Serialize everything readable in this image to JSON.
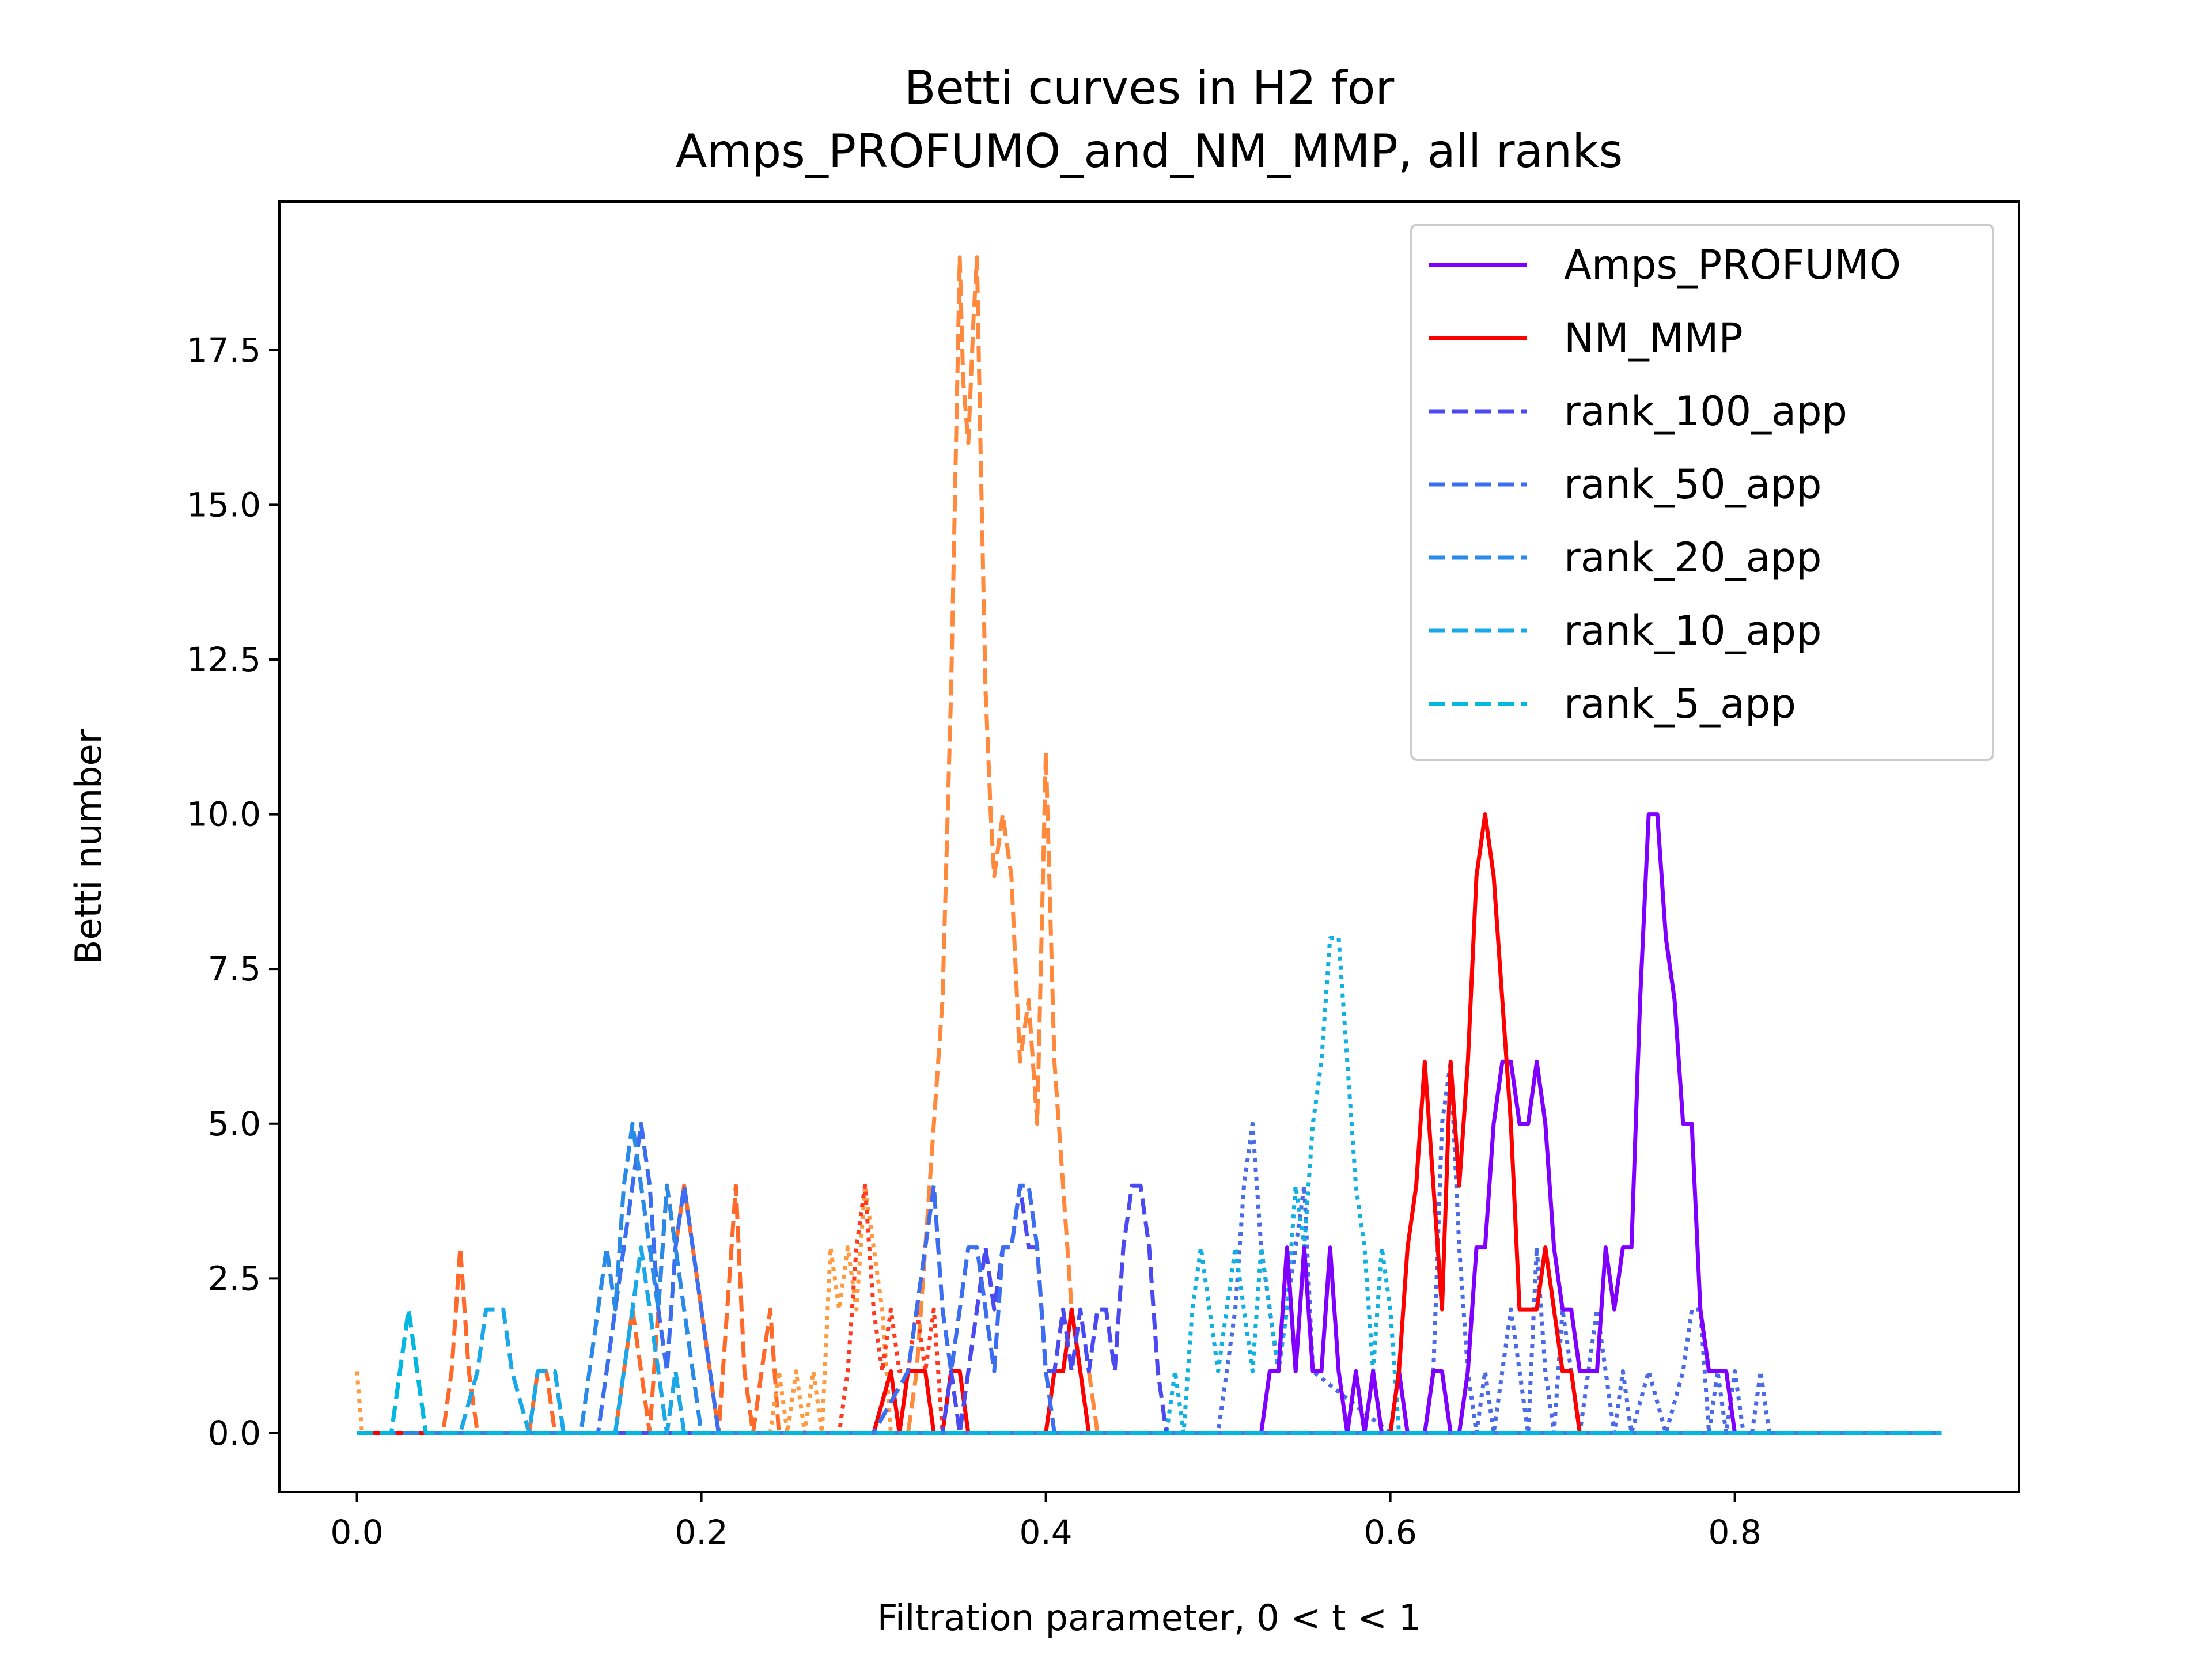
{
  "chart_data": {
    "type": "line",
    "title_line1": "Betti curves in H2 for",
    "title_line2": "Amps_PROFUMO_and_NM_MMP, all ranks",
    "xlabel": "Filtration parameter, 0 < t < 1",
    "ylabel": "Betti number",
    "xlim": [
      -0.045,
      0.965
    ],
    "ylim": [
      -0.95,
      19.9
    ],
    "xticks": [
      0.0,
      0.2,
      0.4,
      0.6,
      0.8
    ],
    "xtick_labels": [
      "0.0",
      "0.2",
      "0.4",
      "0.6",
      "0.8"
    ],
    "yticks": [
      0.0,
      2.5,
      5.0,
      7.5,
      10.0,
      12.5,
      15.0,
      17.5
    ],
    "ytick_labels": [
      "0.0",
      "2.5",
      "5.0",
      "7.5",
      "10.0",
      "12.5",
      "15.0",
      "17.5"
    ],
    "grid": false,
    "legend_position": "top-right",
    "series": [
      {
        "name": "Amps_PROFUMO",
        "color": "#8000ff",
        "style": "solid",
        "x": [
          0.0,
          0.2,
          0.4,
          0.525,
          0.53,
          0.535,
          0.54,
          0.545,
          0.55,
          0.555,
          0.56,
          0.565,
          0.57,
          0.575,
          0.58,
          0.585,
          0.59,
          0.595,
          0.6,
          0.605,
          0.61,
          0.615,
          0.62,
          0.625,
          0.63,
          0.635,
          0.64,
          0.645,
          0.65,
          0.655,
          0.66,
          0.665,
          0.67,
          0.675,
          0.68,
          0.685,
          0.69,
          0.695,
          0.7,
          0.705,
          0.71,
          0.715,
          0.72,
          0.725,
          0.73,
          0.735,
          0.74,
          0.745,
          0.75,
          0.755,
          0.76,
          0.765,
          0.77,
          0.775,
          0.78,
          0.785,
          0.79,
          0.795,
          0.8,
          0.805
        ],
        "y": [
          0,
          0,
          0,
          0,
          1,
          1,
          3,
          1,
          3,
          1,
          1,
          3,
          1,
          0,
          1,
          0,
          1,
          0,
          0,
          1,
          0,
          0,
          0,
          1,
          1,
          0,
          0,
          1,
          3,
          3,
          5,
          6,
          6,
          5,
          5,
          6,
          5,
          3,
          2,
          2,
          1,
          1,
          1,
          3,
          2,
          3,
          3,
          7,
          10,
          10,
          8,
          7,
          5,
          5,
          2,
          1,
          1,
          1,
          0,
          0
        ]
      },
      {
        "name": "NM_MMP",
        "color": "#ff0000",
        "style": "solid",
        "x": [
          0.0,
          0.1,
          0.2,
          0.3,
          0.31,
          0.315,
          0.32,
          0.325,
          0.33,
          0.335,
          0.34,
          0.345,
          0.35,
          0.355,
          0.36,
          0.4,
          0.405,
          0.41,
          0.415,
          0.42,
          0.425,
          0.43,
          0.435,
          0.44,
          0.5,
          0.6,
          0.605,
          0.61,
          0.615,
          0.62,
          0.625,
          0.63,
          0.635,
          0.64,
          0.645,
          0.65,
          0.655,
          0.66,
          0.665,
          0.67,
          0.675,
          0.68,
          0.685,
          0.69,
          0.695,
          0.7,
          0.705,
          0.71,
          0.715,
          0.72,
          0.8,
          0.92
        ],
        "y": [
          0,
          0,
          0,
          0,
          1,
          0,
          1,
          1,
          1,
          0,
          0,
          1,
          1,
          0,
          0,
          0,
          1,
          1,
          2,
          1,
          0,
          0,
          0,
          0,
          0,
          0,
          1,
          3,
          4,
          6,
          4,
          2,
          6,
          4,
          6,
          9,
          10,
          9,
          7,
          5,
          2,
          2,
          2,
          3,
          2,
          1,
          1,
          0,
          0,
          0,
          0,
          0
        ]
      },
      {
        "name": "rank_100_app",
        "color": "#4a4af0",
        "style": "dashed",
        "x": [
          0.0,
          0.1,
          0.2,
          0.3,
          0.31,
          0.315,
          0.32,
          0.325,
          0.33,
          0.335,
          0.34,
          0.345,
          0.35,
          0.355,
          0.36,
          0.365,
          0.37,
          0.375,
          0.38,
          0.385,
          0.39,
          0.395,
          0.4,
          0.405,
          0.41,
          0.415,
          0.42,
          0.425,
          0.43,
          0.435,
          0.44,
          0.445,
          0.45,
          0.455,
          0.46,
          0.465,
          0.47,
          0.48,
          0.5,
          0.6,
          0.7,
          0.8,
          0.92
        ],
        "y": [
          0,
          0,
          0,
          0,
          0,
          0,
          0,
          0,
          0,
          0,
          0,
          1,
          0,
          1,
          2,
          3,
          2,
          3,
          3,
          4,
          3,
          3,
          1,
          1,
          2,
          1,
          2,
          1,
          2,
          2,
          1,
          3,
          4,
          4,
          3,
          1,
          0,
          0,
          0,
          0,
          0,
          0,
          0
        ]
      },
      {
        "name": "rank_50_app",
        "color": "#3b6ef0",
        "style": "dashed",
        "x": [
          0.0,
          0.1,
          0.14,
          0.145,
          0.15,
          0.155,
          0.16,
          0.165,
          0.17,
          0.175,
          0.18,
          0.185,
          0.19,
          0.195,
          0.2,
          0.205,
          0.21,
          0.215,
          0.22,
          0.3,
          0.32,
          0.325,
          0.33,
          0.335,
          0.34,
          0.345,
          0.35,
          0.355,
          0.36,
          0.365,
          0.37,
          0.375,
          0.38,
          0.385,
          0.39,
          0.395,
          0.4,
          0.405,
          0.41,
          0.5,
          0.6,
          0.92
        ],
        "y": [
          0,
          0,
          0,
          1,
          2,
          3,
          4,
          5,
          4,
          2,
          1,
          3,
          4,
          3,
          2,
          1,
          0,
          0,
          0,
          0,
          1,
          2,
          3,
          4,
          2,
          1,
          2,
          3,
          3,
          2,
          1,
          3,
          3,
          4,
          4,
          3,
          1,
          0,
          0,
          0,
          0,
          0
        ]
      },
      {
        "name": "rank_20_app",
        "color": "#2a8ae8",
        "style": "dashed",
        "x": [
          0.0,
          0.1,
          0.13,
          0.135,
          0.14,
          0.145,
          0.15,
          0.155,
          0.16,
          0.165,
          0.17,
          0.175,
          0.18,
          0.185,
          0.19,
          0.195,
          0.2,
          0.205,
          0.21,
          0.3,
          0.4,
          0.5,
          0.6,
          0.92
        ],
        "y": [
          0,
          0,
          0,
          1,
          2,
          3,
          2,
          4,
          5,
          4,
          3,
          2,
          4,
          3,
          2,
          1,
          0,
          0,
          0,
          0,
          0,
          0,
          0,
          0
        ]
      },
      {
        "name": "rank_10_app",
        "color": "#1aa8e8",
        "style": "dashed",
        "x": [
          0.0,
          0.02,
          0.025,
          0.03,
          0.035,
          0.04,
          0.06,
          0.07,
          0.075,
          0.08,
          0.085,
          0.09,
          0.1,
          0.105,
          0.11,
          0.115,
          0.12,
          0.15,
          0.155,
          0.16,
          0.165,
          0.17,
          0.175,
          0.18,
          0.185,
          0.19,
          0.2,
          0.3,
          0.4,
          0.5,
          0.6,
          0.92
        ],
        "y": [
          0,
          0,
          1,
          2,
          1,
          0,
          0,
          1,
          2,
          2,
          2,
          1,
          0,
          1,
          1,
          1,
          0,
          0,
          1,
          2,
          3,
          2,
          1,
          0,
          1,
          0,
          0,
          0,
          0,
          0,
          0,
          0
        ]
      },
      {
        "name": "rank_5_app",
        "color": "#00b8e0",
        "style": "dashed",
        "x": [
          0.0,
          0.02,
          0.025,
          0.03,
          0.035,
          0.04,
          0.05,
          0.3,
          0.5,
          0.7,
          0.75,
          0.8,
          0.85,
          0.92
        ],
        "y": [
          0,
          0,
          1,
          2,
          1,
          0,
          0,
          0,
          0,
          0,
          0,
          0,
          0,
          0
        ]
      },
      {
        "name": "",
        "color": "#ff8a3d",
        "style": "dashed",
        "x": [
          0.0,
          0.3,
          0.32,
          0.325,
          0.33,
          0.335,
          0.34,
          0.345,
          0.35,
          0.352,
          0.355,
          0.358,
          0.36,
          0.362,
          0.365,
          0.368,
          0.37,
          0.375,
          0.38,
          0.385,
          0.39,
          0.395,
          0.4,
          0.405,
          0.41,
          0.415,
          0.42,
          0.425,
          0.43,
          0.44,
          0.5,
          0.92
        ],
        "y": [
          0,
          0,
          0,
          1,
          3,
          5,
          7,
          12,
          19,
          17,
          16,
          18,
          19,
          16,
          12,
          10,
          9,
          10,
          9,
          6,
          7,
          5,
          11,
          6,
          4,
          2,
          1,
          1,
          0,
          0,
          0,
          0
        ]
      },
      {
        "name": "",
        "color": "#ff6a2a",
        "style": "dashed",
        "x": [
          0.0,
          0.05,
          0.055,
          0.06,
          0.065,
          0.07,
          0.1,
          0.105,
          0.11,
          0.115,
          0.15,
          0.155,
          0.16,
          0.17,
          0.175,
          0.18,
          0.185,
          0.19,
          0.195,
          0.2,
          0.205,
          0.21,
          0.215,
          0.22,
          0.225,
          0.23,
          0.235,
          0.24,
          0.245,
          0.3,
          0.92
        ],
        "y": [
          0,
          0,
          1,
          3,
          1,
          0,
          0,
          1,
          1,
          0,
          0,
          1,
          2,
          0,
          2,
          4,
          3,
          4,
          3,
          2,
          1,
          0,
          2,
          4,
          1,
          0,
          1,
          2,
          0,
          0,
          0
        ]
      },
      {
        "name": "",
        "color": "#ff9a40",
        "style": "dotted",
        "x": [
          0.0,
          0.003,
          0.006,
          0.01,
          0.2,
          0.24,
          0.245,
          0.25,
          0.255,
          0.26,
          0.265,
          0.27,
          0.275,
          0.28,
          0.285,
          0.29,
          0.295,
          0.3,
          0.305,
          0.31,
          0.4,
          0.92
        ],
        "y": [
          1,
          0,
          0,
          0,
          0,
          0,
          1,
          0,
          1,
          0,
          1,
          0,
          3,
          2,
          3,
          2,
          4,
          3,
          2,
          0,
          0,
          0
        ]
      },
      {
        "name": "",
        "color": "#ff3a20",
        "style": "dotted",
        "x": [
          0.0,
          0.28,
          0.285,
          0.29,
          0.295,
          0.3,
          0.305,
          0.31,
          0.315,
          0.32,
          0.325,
          0.33,
          0.335,
          0.34,
          0.4,
          0.92
        ],
        "y": [
          0,
          0,
          1,
          3,
          4,
          2,
          1,
          2,
          1,
          1,
          2,
          1,
          2,
          0,
          0,
          0
        ]
      },
      {
        "name": "",
        "color": "#4a6ae8",
        "style": "dotted",
        "x": [
          0.0,
          0.5,
          0.505,
          0.51,
          0.515,
          0.52,
          0.525,
          0.53,
          0.535,
          0.54,
          0.545,
          0.55,
          0.555,
          0.6,
          0.62,
          0.625,
          0.63,
          0.635,
          0.64,
          0.645,
          0.65,
          0.655,
          0.66,
          0.665,
          0.67,
          0.675,
          0.68,
          0.685,
          0.69,
          0.695,
          0.7,
          0.705,
          0.71,
          0.715,
          0.72,
          0.725,
          0.73,
          0.735,
          0.74,
          0.75,
          0.76,
          0.77,
          0.775,
          0.78,
          0.785,
          0.79,
          0.795,
          0.8,
          0.805,
          0.81,
          0.815,
          0.82,
          0.92
        ],
        "y": [
          0,
          0,
          1,
          2,
          4,
          5,
          3,
          2,
          1,
          2,
          3,
          4,
          1,
          0,
          0,
          1,
          5,
          6,
          3,
          1,
          0,
          1,
          0,
          1,
          2,
          1,
          0,
          3,
          1,
          0,
          2,
          1,
          0,
          1,
          2,
          1,
          0,
          1,
          0,
          1,
          0,
          1,
          2,
          2,
          0,
          1,
          0,
          1,
          0,
          0,
          1,
          0,
          0
        ]
      },
      {
        "name": "",
        "color": "#10b0e0",
        "style": "dotted",
        "x": [
          0.0,
          0.47,
          0.475,
          0.48,
          0.485,
          0.49,
          0.495,
          0.5,
          0.505,
          0.51,
          0.515,
          0.52,
          0.525,
          0.53,
          0.535,
          0.54,
          0.545,
          0.55,
          0.555,
          0.56,
          0.565,
          0.57,
          0.575,
          0.58,
          0.585,
          0.59,
          0.595,
          0.6,
          0.605,
          0.61,
          0.7,
          0.92
        ],
        "y": [
          0,
          0,
          1,
          0,
          2,
          3,
          2,
          1,
          2,
          3,
          2,
          1,
          3,
          2,
          1,
          2,
          4,
          3,
          5,
          6,
          8,
          8,
          6,
          4,
          3,
          1,
          3,
          2,
          0,
          0,
          0,
          0
        ]
      }
    ]
  }
}
